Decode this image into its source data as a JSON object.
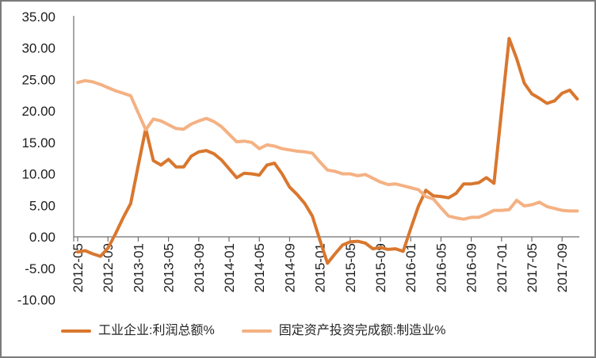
{
  "chart_data": {
    "type": "line",
    "title": "",
    "xlabel": "",
    "ylabel": "",
    "ylim": [
      -10,
      35
    ],
    "y_tick_step": 5,
    "y_tick_labels": [
      "35.00",
      "30.00",
      "25.00",
      "20.00",
      "15.00",
      "10.00",
      "5.00",
      "0.00",
      "-5.00",
      "-10.00"
    ],
    "x_tick_every": 4,
    "x_tick_labels": [
      "2012-05",
      "2012-09",
      "2013-01",
      "2013-05",
      "2013-09",
      "2014-01",
      "2014-05",
      "2014-09",
      "2015-01",
      "2015-05",
      "2015-09",
      "2016-01",
      "2016-05",
      "2016-09",
      "2017-01",
      "2017-05",
      "2017-09"
    ],
    "grid": "none",
    "zero_line": true,
    "legend_position": "bottom",
    "categories": [
      "2012-05",
      "2012-06",
      "2012-07",
      "2012-08",
      "2012-09",
      "2012-10",
      "2012-11",
      "2012-12",
      "2013-01",
      "2013-02",
      "2013-03",
      "2013-04",
      "2013-05",
      "2013-06",
      "2013-07",
      "2013-08",
      "2013-09",
      "2013-10",
      "2013-11",
      "2013-12",
      "2014-01",
      "2014-02",
      "2014-03",
      "2014-04",
      "2014-05",
      "2014-06",
      "2014-07",
      "2014-08",
      "2014-09",
      "2014-10",
      "2014-11",
      "2014-12",
      "2015-01",
      "2015-02",
      "2015-03",
      "2015-04",
      "2015-05",
      "2015-06",
      "2015-07",
      "2015-08",
      "2015-09",
      "2015-10",
      "2015-11",
      "2015-12",
      "2016-01",
      "2016-02",
      "2016-03",
      "2016-04",
      "2016-05",
      "2016-06",
      "2016-07",
      "2016-08",
      "2016-09",
      "2016-10",
      "2016-11",
      "2016-12",
      "2017-01",
      "2017-02",
      "2017-03",
      "2017-04",
      "2017-05",
      "2017-06",
      "2017-07",
      "2017-08",
      "2017-09",
      "2017-10",
      "2017-11"
    ],
    "series": [
      {
        "name": "工业企业:利润总额%",
        "color": "#D9772E",
        "values": [
          -2.4,
          -2.2,
          -2.7,
          -3.1,
          -1.8,
          0.5,
          3.0,
          5.3,
          11.3,
          17.2,
          12.1,
          11.4,
          12.3,
          11.1,
          11.1,
          12.8,
          13.5,
          13.7,
          13.2,
          12.2,
          10.8,
          9.4,
          10.1,
          10.0,
          9.8,
          11.4,
          11.7,
          10.0,
          7.9,
          6.7,
          5.3,
          3.3,
          -0.5,
          -4.2,
          -2.7,
          -1.3,
          -0.8,
          -0.7,
          -1.0,
          -1.9,
          -1.7,
          -2.0,
          -1.9,
          -2.3,
          1.3,
          4.8,
          7.4,
          6.5,
          6.4,
          6.2,
          6.9,
          8.4,
          8.4,
          8.6,
          9.4,
          8.5,
          20.0,
          31.5,
          28.3,
          24.4,
          22.7,
          22.0,
          21.2,
          21.6,
          22.8,
          23.3,
          21.9
        ]
      },
      {
        "name": "固定资产投资完成额:制造业%",
        "color": "#F4B183",
        "values": [
          24.5,
          24.8,
          24.6,
          24.2,
          23.7,
          23.2,
          22.8,
          22.4,
          19.7,
          17.0,
          18.7,
          18.4,
          17.8,
          17.2,
          17.1,
          17.9,
          18.4,
          18.8,
          18.3,
          17.5,
          16.3,
          15.1,
          15.2,
          15.0,
          14.0,
          14.6,
          14.4,
          14.0,
          13.8,
          13.6,
          13.5,
          13.3,
          11.9,
          10.6,
          10.4,
          10.0,
          10.0,
          9.7,
          9.9,
          9.3,
          8.7,
          8.3,
          8.4,
          8.1,
          7.8,
          7.5,
          6.4,
          6.0,
          4.6,
          3.3,
          3.0,
          2.8,
          3.1,
          3.1,
          3.6,
          4.2,
          4.2,
          4.3,
          5.8,
          4.9,
          5.1,
          5.5,
          4.8,
          4.5,
          4.2,
          4.1,
          4.1
        ]
      }
    ]
  },
  "colors": {
    "axis_line": "#6e6e6e",
    "axis_text": "#1d1d1d",
    "border": "#7b7b7b",
    "background": "#ffffff"
  }
}
